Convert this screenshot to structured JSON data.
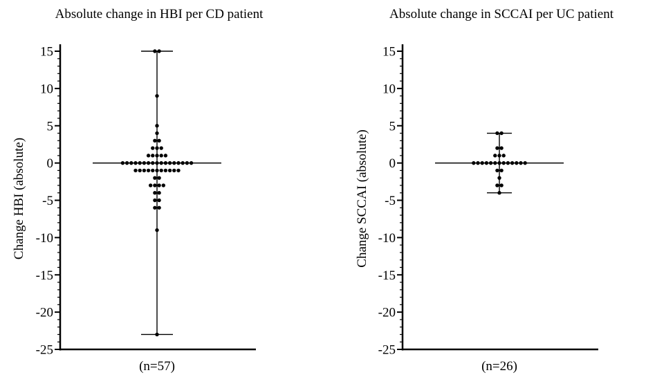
{
  "chart_data": [
    {
      "type": "scatter",
      "subtype": "dot-plot-with-median-range",
      "title": "Absolute change in HBI per CD patient",
      "ylabel": "Change HBI (absolute)",
      "xlabel": "(n=57)",
      "ylim": [
        -25,
        15
      ],
      "yticks": [
        "15",
        "10",
        "5",
        "0",
        "-5",
        "-10",
        "-15",
        "-20",
        "-25"
      ],
      "grid": false,
      "median": 0,
      "range": [
        -23,
        15
      ],
      "series": [
        {
          "values": [
            15,
            15,
            9,
            5,
            4,
            3,
            3,
            2,
            2,
            2,
            1,
            1,
            1,
            1,
            1,
            0,
            0,
            0,
            0,
            0,
            0,
            0,
            0,
            0,
            0,
            0,
            0,
            0,
            0,
            0,
            0,
            0,
            -1,
            -1,
            -1,
            -1,
            -1,
            -1,
            -1,
            -1,
            -1,
            -1,
            -1,
            -2,
            -2,
            -3,
            -3,
            -3,
            -3,
            -4,
            -4,
            -5,
            -5,
            -6,
            -6,
            -9,
            -23
          ]
        }
      ]
    },
    {
      "type": "scatter",
      "subtype": "dot-plot-with-median-range",
      "title": "Absolute change in SCCAI per UC patient",
      "ylabel": "Change SCCAI (absolute)",
      "xlabel": "(n=26)",
      "ylim": [
        -25,
        15
      ],
      "yticks": [
        "15",
        "10",
        "5",
        "0",
        "-5",
        "-10",
        "-15",
        "-20",
        "-25"
      ],
      "grid": false,
      "median": 0,
      "range": [
        -4,
        4
      ],
      "series": [
        {
          "values": [
            4,
            4,
            2,
            2,
            1,
            1,
            1,
            0,
            0,
            0,
            0,
            0,
            0,
            0,
            0,
            0,
            0,
            0,
            0,
            0,
            -1,
            -1,
            -2,
            -3,
            -3,
            -4
          ]
        }
      ]
    }
  ]
}
